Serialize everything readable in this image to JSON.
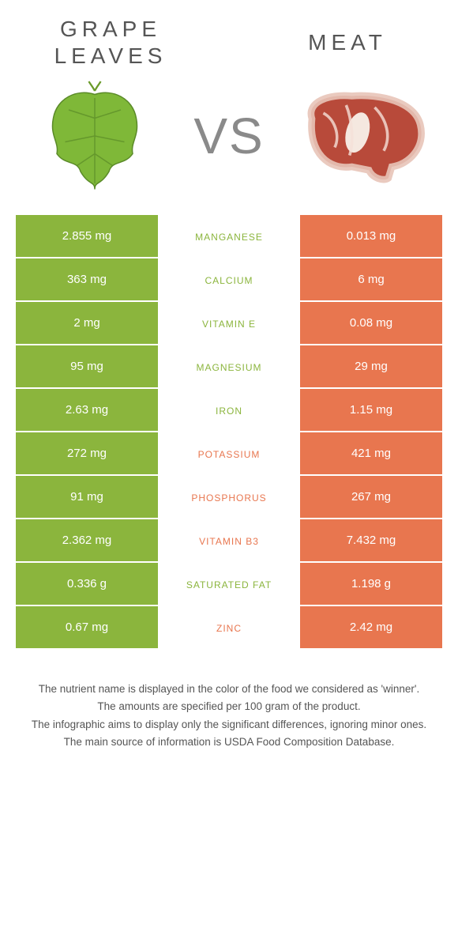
{
  "header": {
    "left_title_line1": "Grape",
    "left_title_line2": "Leaves",
    "right_title": "Meat",
    "vs": "VS"
  },
  "colors": {
    "left_bg": "#8bb53d",
    "right_bg": "#e8764f",
    "left_text": "#8bb53d",
    "right_text": "#e8764f"
  },
  "rows": [
    {
      "left": "2.855 mg",
      "mid": "Manganese",
      "right": "0.013 mg",
      "winner": "left"
    },
    {
      "left": "363 mg",
      "mid": "Calcium",
      "right": "6 mg",
      "winner": "left"
    },
    {
      "left": "2 mg",
      "mid": "Vitamin E",
      "right": "0.08 mg",
      "winner": "left"
    },
    {
      "left": "95 mg",
      "mid": "Magnesium",
      "right": "29 mg",
      "winner": "left"
    },
    {
      "left": "2.63 mg",
      "mid": "Iron",
      "right": "1.15 mg",
      "winner": "left"
    },
    {
      "left": "272 mg",
      "mid": "Potassium",
      "right": "421 mg",
      "winner": "right"
    },
    {
      "left": "91 mg",
      "mid": "Phosphorus",
      "right": "267 mg",
      "winner": "right"
    },
    {
      "left": "2.362 mg",
      "mid": "Vitamin B3",
      "right": "7.432 mg",
      "winner": "right"
    },
    {
      "left": "0.336 g",
      "mid": "Saturated Fat",
      "right": "1.198 g",
      "winner": "left"
    },
    {
      "left": "0.67 mg",
      "mid": "Zinc",
      "right": "2.42 mg",
      "winner": "right"
    }
  ],
  "footer": {
    "line1": "The nutrient name is displayed in the color of the food we considered as 'winner'.",
    "line2": "The amounts are specified per 100 gram of the product.",
    "line3": "The infographic aims to display only the significant differences, ignoring minor ones.",
    "line4": "The main source of information is USDA Food Composition Database."
  }
}
